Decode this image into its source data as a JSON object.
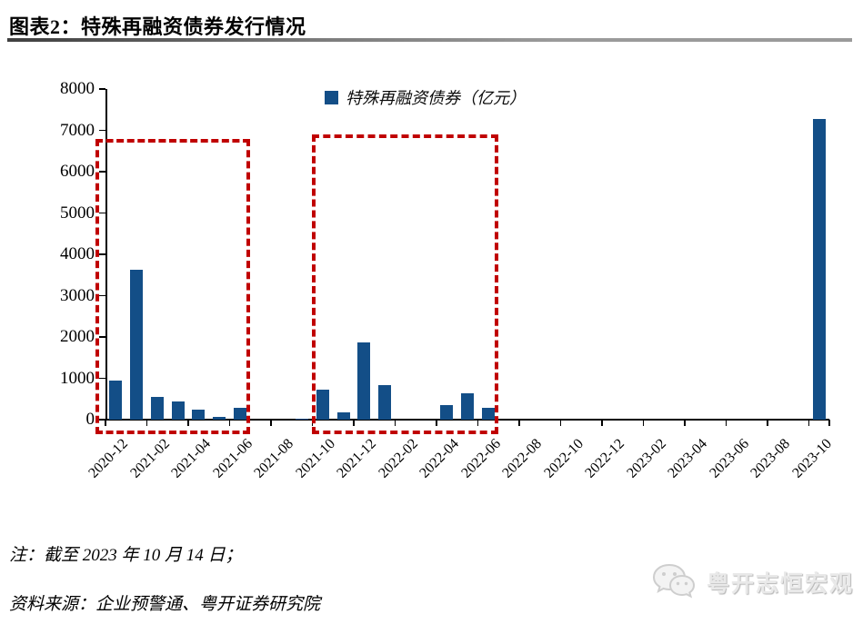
{
  "header": {
    "title": "图表2：特殊再融资债券发行情况"
  },
  "chart_data": {
    "type": "bar",
    "legend": "特殊再融资债券（亿元）",
    "unit": "亿元",
    "categories": [
      "2020-12",
      "2021-01",
      "2021-02",
      "2021-03",
      "2021-04",
      "2021-05",
      "2021-06",
      "2021-07",
      "2021-08",
      "2021-09",
      "2021-10",
      "2021-11",
      "2021-12",
      "2022-01",
      "2022-02",
      "2022-03",
      "2022-04",
      "2022-05",
      "2022-06",
      "2022-07",
      "2022-08",
      "2022-09",
      "2022-10",
      "2022-11",
      "2022-12",
      "2023-01",
      "2023-02",
      "2023-03",
      "2023-04",
      "2023-05",
      "2023-06",
      "2023-07",
      "2023-08",
      "2023-09",
      "2023-10"
    ],
    "values": [
      940,
      3620,
      545,
      430,
      235,
      70,
      280,
      0,
      0,
      30,
      730,
      185,
      1870,
      835,
      0,
      0,
      350,
      630,
      290,
      0,
      0,
      0,
      0,
      0,
      0,
      0,
      0,
      0,
      0,
      0,
      0,
      0,
      0,
      0,
      7280
    ],
    "x_tick_labels": [
      "2020-12",
      "2021-02",
      "2021-04",
      "2021-06",
      "2021-08",
      "2021-10",
      "2021-12",
      "2022-02",
      "2022-04",
      "2022-06",
      "2022-08",
      "2022-10",
      "2022-12",
      "2023-02",
      "2023-04",
      "2023-06",
      "2023-08",
      "2023-10"
    ],
    "y_ticks": [
      0,
      1000,
      2000,
      3000,
      4000,
      5000,
      6000,
      7000,
      8000
    ],
    "ylim": [
      0,
      8000
    ],
    "grid": false,
    "legend_position": "top-center",
    "bar_color": "#134e87",
    "highlight_boxes": [
      {
        "from_category": "2020-12",
        "to_category": "2021-06",
        "top_value": 6800,
        "color": "#c00000"
      },
      {
        "from_category": "2021-10",
        "to_category": "2022-06",
        "top_value": 6900,
        "color": "#c00000"
      }
    ]
  },
  "footer": {
    "note": "注：截至 2023 年 10 月 14 日；",
    "source": "资料来源：企业预警通、粤开证券研究院"
  },
  "watermark": {
    "icon": "wechat-icon",
    "label": "粤开志恒宏观"
  }
}
